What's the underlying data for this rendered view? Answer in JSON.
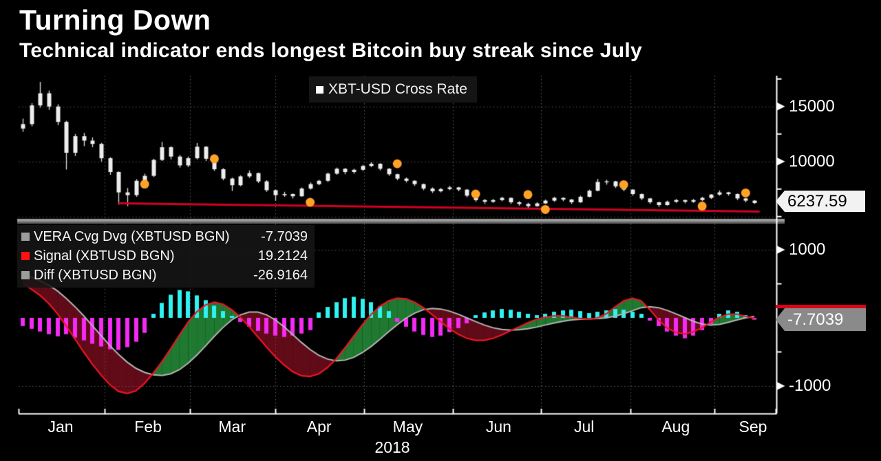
{
  "header": {
    "title": "Turning Down",
    "subtitle": "Technical indicator ends longest Bitcoin buy streak since July"
  },
  "top_panel": {
    "legend": {
      "label": "XBT-USD Cross Rate",
      "marker_color": "#ffffff"
    },
    "price_badge": "6237.59",
    "y_axis_labels": [
      "15000",
      "10000"
    ]
  },
  "bottom_panel": {
    "legend": [
      {
        "label": "VERA Cvg Dvg (XBTUSD BGN)",
        "value": "-7.7039",
        "marker_color": "#9c9c9c"
      },
      {
        "label": "Signal (XBTUSD BGN)",
        "value": "19.2124",
        "marker_color": "#ff1212"
      },
      {
        "label": "Diff (XBTUSD BGN)",
        "value": "-26.9164",
        "marker_color": "#9c9c9c"
      }
    ],
    "value_badge": "-7.7039",
    "y_axis_labels": [
      "1000",
      "-1000"
    ]
  },
  "x_axis": {
    "months": [
      {
        "label": "Jan",
        "center": 0.0555
      },
      {
        "label": "Feb",
        "center": 0.171
      },
      {
        "label": "Mar",
        "center": 0.282
      },
      {
        "label": "Apr",
        "center": 0.397
      },
      {
        "label": "May",
        "center": 0.514
      },
      {
        "label": "Jun",
        "center": 0.634
      },
      {
        "label": "Jul",
        "center": 0.747
      },
      {
        "label": "Aug",
        "center": 0.868
      },
      {
        "label": "Sep",
        "center": 0.97
      }
    ],
    "boundaries": [
      0.114,
      0.226,
      0.339,
      0.456,
      0.574,
      0.69,
      0.808,
      0.919
    ],
    "year": "2018"
  },
  "chart_data": [
    {
      "type": "candlestick",
      "name": "XBT-USD Cross Rate",
      "ylim": [
        4800,
        17800
      ],
      "grid_values": [
        15000,
        10000,
        5000
      ],
      "labeled_ticks": [
        15000,
        10000
      ],
      "minor_ticks": [
        17500,
        12500,
        7500,
        5000
      ],
      "candle_color": "#ededed",
      "wick_color": "#d6d6d6",
      "last_price": 6237.59,
      "candles": [
        [
          13000,
          13900,
          12700,
          13400
        ],
        [
          13400,
          15300,
          13200,
          15100
        ],
        [
          15100,
          17230,
          14900,
          16200
        ],
        [
          16200,
          16450,
          14700,
          15000
        ],
        [
          15000,
          15200,
          13300,
          13600
        ],
        [
          13600,
          13700,
          9270,
          10800
        ],
        [
          10800,
          12500,
          10500,
          12300
        ],
        [
          12300,
          12600,
          11400,
          11900
        ],
        [
          11900,
          12200,
          11300,
          11600
        ],
        [
          11600,
          11700,
          10000,
          10300
        ],
        [
          10300,
          10400,
          8800,
          9050
        ],
        [
          9050,
          9100,
          6080,
          7200
        ],
        [
          7200,
          7600,
          5950,
          6950
        ],
        [
          6950,
          8400,
          6800,
          8250
        ],
        [
          8250,
          8900,
          8000,
          8700
        ],
        [
          8700,
          10250,
          8600,
          10150
        ],
        [
          10150,
          11790,
          10050,
          11300
        ],
        [
          11300,
          11400,
          10200,
          10450
        ],
        [
          10450,
          10600,
          9450,
          9650
        ],
        [
          9650,
          10450,
          9500,
          10300
        ],
        [
          10300,
          11680,
          10200,
          11350
        ],
        [
          11350,
          11400,
          10050,
          10250
        ],
        [
          10250,
          10350,
          9150,
          9300
        ],
        [
          9300,
          9400,
          8300,
          8450
        ],
        [
          8450,
          8550,
          7330,
          7850
        ],
        [
          7850,
          8750,
          7750,
          8650
        ],
        [
          8650,
          9200,
          8500,
          8950
        ],
        [
          8950,
          9000,
          8050,
          8200
        ],
        [
          8200,
          8300,
          7250,
          7400
        ],
        [
          7400,
          7450,
          6430,
          6950
        ],
        [
          6950,
          7250,
          6800,
          7050
        ],
        [
          7050,
          7100,
          6650,
          6850
        ],
        [
          6850,
          7650,
          6800,
          7550
        ],
        [
          7550,
          8100,
          7450,
          7950
        ],
        [
          7950,
          8350,
          7850,
          8250
        ],
        [
          8250,
          9000,
          8150,
          8900
        ],
        [
          8900,
          9450,
          8800,
          9350
        ],
        [
          9350,
          9400,
          8850,
          9050
        ],
        [
          9050,
          9350,
          8900,
          9250
        ],
        [
          9250,
          9700,
          9150,
          9600
        ],
        [
          9600,
          9940,
          9500,
          9800
        ],
        [
          9800,
          9850,
          9200,
          9350
        ],
        [
          9350,
          9400,
          8700,
          8850
        ],
        [
          8850,
          8900,
          8300,
          8450
        ],
        [
          8450,
          8550,
          8100,
          8250
        ],
        [
          8250,
          8300,
          7800,
          7950
        ],
        [
          7950,
          8000,
          7400,
          7550
        ],
        [
          7550,
          7650,
          7150,
          7300
        ],
        [
          7300,
          7600,
          7200,
          7500
        ],
        [
          7500,
          7800,
          7400,
          7650
        ],
        [
          7650,
          7700,
          7300,
          7450
        ],
        [
          7450,
          7500,
          6750,
          6900
        ],
        [
          6900,
          6950,
          6350,
          6500
        ],
        [
          6500,
          6600,
          6150,
          6350
        ],
        [
          6350,
          6600,
          6250,
          6500
        ],
        [
          6500,
          6800,
          6400,
          6700
        ],
        [
          6700,
          6750,
          6150,
          6300
        ],
        [
          6300,
          6400,
          6000,
          6150
        ],
        [
          6150,
          6250,
          5780,
          5950
        ],
        [
          5950,
          6300,
          5900,
          6200
        ],
        [
          6200,
          6550,
          6150,
          6450
        ],
        [
          6450,
          6800,
          6350,
          6700
        ],
        [
          6700,
          6750,
          6400,
          6550
        ],
        [
          6550,
          6600,
          6150,
          6300
        ],
        [
          6300,
          6900,
          6250,
          6800
        ],
        [
          6800,
          7450,
          6750,
          7350
        ],
        [
          7350,
          8420,
          7300,
          8150
        ],
        [
          8150,
          8350,
          7900,
          8200
        ],
        [
          8200,
          8250,
          7600,
          7750
        ],
        [
          7750,
          7850,
          7300,
          7450
        ],
        [
          7450,
          7500,
          6900,
          7050
        ],
        [
          7050,
          7100,
          6500,
          6650
        ],
        [
          6650,
          6700,
          6150,
          6300
        ],
        [
          6300,
          6350,
          5880,
          6050
        ],
        [
          6050,
          6450,
          6000,
          6350
        ],
        [
          6350,
          6600,
          6250,
          6500
        ],
        [
          6500,
          6550,
          6200,
          6350
        ],
        [
          6350,
          6600,
          6250,
          6500
        ],
        [
          6500,
          6800,
          6400,
          6700
        ],
        [
          6700,
          7050,
          6600,
          7000
        ],
        [
          7000,
          7380,
          6900,
          7200
        ],
        [
          7200,
          7250,
          6900,
          7050
        ],
        [
          7050,
          7100,
          6500,
          6650
        ],
        [
          6650,
          6700,
          6300,
          6450
        ],
        [
          6450,
          6500,
          6150,
          6237.59
        ]
      ],
      "signal_dots": {
        "color": "#ffa226",
        "points": [
          [
            14,
            7950
          ],
          [
            22,
            10250
          ],
          [
            33,
            6300
          ],
          [
            43,
            9800
          ],
          [
            52,
            7050
          ],
          [
            58,
            7000
          ],
          [
            60,
            5650
          ],
          [
            69,
            7900
          ],
          [
            78,
            5950
          ],
          [
            83,
            7150
          ]
        ]
      },
      "trendline": {
        "color": "#d50021",
        "from": [
          11,
          6200
        ],
        "to": [
          84.6,
          5450
        ]
      }
    },
    {
      "type": "macd_indicator",
      "ylim": [
        -1394,
        1384
      ],
      "grid_values": [
        1000,
        -1000
      ],
      "labeled_ticks": [
        1000,
        -1000
      ],
      "minor_ticks": [
        500,
        -500
      ],
      "band": {
        "fast_above_color": "rgba(38,148,58,0.82)",
        "fast_below_color": "rgba(196,22,48,0.50)"
      },
      "series": [
        {
          "name": "VERA Cvg Dvg (XBTUSD BGN)",
          "style": "line",
          "line_color": "#ee1526",
          "last_value": -7.7039,
          "values": [
            520,
            420,
            330,
            210,
            60,
            -120,
            -310,
            -500,
            -680,
            -840,
            -980,
            -1080,
            -1110,
            -1070,
            -960,
            -810,
            -640,
            -450,
            -250,
            -60,
            90,
            190,
            230,
            200,
            120,
            10,
            -130,
            -280,
            -430,
            -570,
            -690,
            -790,
            -850,
            -860,
            -820,
            -730,
            -600,
            -440,
            -270,
            -100,
            50,
            170,
            250,
            290,
            280,
            230,
            150,
            50,
            -60,
            -160,
            -240,
            -300,
            -330,
            -330,
            -300,
            -250,
            -190,
            -130,
            -70,
            -20,
            10,
            30,
            30,
            10,
            -10,
            -20,
            0,
            60,
            160,
            250,
            290,
            250,
            120,
            -30,
            -150,
            -215,
            -235,
            -205,
            -145,
            -60,
            10,
            55,
            55,
            20,
            -7.7039
          ]
        },
        {
          "name": "Signal (XBTUSD BGN)",
          "style": "line",
          "line_color": "#b5b5b5",
          "last_value": 19.2124,
          "values": [
            660,
            600,
            545,
            480,
            395,
            285,
            165,
            30,
            -115,
            -260,
            -405,
            -535,
            -650,
            -740,
            -800,
            -835,
            -845,
            -820,
            -760,
            -665,
            -545,
            -410,
            -270,
            -140,
            -30,
            45,
            85,
            85,
            45,
            -30,
            -130,
            -245,
            -360,
            -465,
            -550,
            -605,
            -630,
            -620,
            -580,
            -510,
            -420,
            -315,
            -205,
            -100,
            -5,
            70,
            120,
            140,
            130,
            100,
            55,
            0,
            -55,
            -105,
            -145,
            -170,
            -180,
            -175,
            -160,
            -135,
            -105,
            -75,
            -50,
            -30,
            -20,
            -15,
            -10,
            0,
            25,
            60,
            105,
            150,
            165,
            150,
            110,
            60,
            5,
            -50,
            -90,
            -105,
            -95,
            -65,
            -30,
            0,
            19.2124
          ]
        },
        {
          "name": "Diff (XBTUSD BGN)",
          "style": "histogram",
          "color_positive": "#2ff2f2",
          "color_negative": "#f52af5",
          "last_value": -26.9164,
          "values": [
            -120,
            -160,
            -200,
            -240,
            -270,
            -240,
            -290,
            -330,
            -380,
            -420,
            -460,
            -470,
            -430,
            -350,
            -220,
            60,
            220,
            340,
            410,
            390,
            330,
            260,
            180,
            100,
            30,
            -60,
            -130,
            -190,
            -230,
            -260,
            -280,
            -260,
            -230,
            -180,
            80,
            160,
            230,
            290,
            310,
            280,
            230,
            170,
            100,
            -60,
            -130,
            -200,
            -250,
            -280,
            -260,
            -210,
            -150,
            -80,
            40,
            80,
            110,
            130,
            120,
            90,
            60,
            40,
            60,
            90,
            110,
            120,
            100,
            70,
            90,
            110,
            130,
            120,
            90,
            60,
            -40,
            -120,
            -200,
            -260,
            -300,
            -260,
            -180,
            -90,
            60,
            110,
            90,
            40,
            -26.9164
          ]
        }
      ]
    }
  ]
}
